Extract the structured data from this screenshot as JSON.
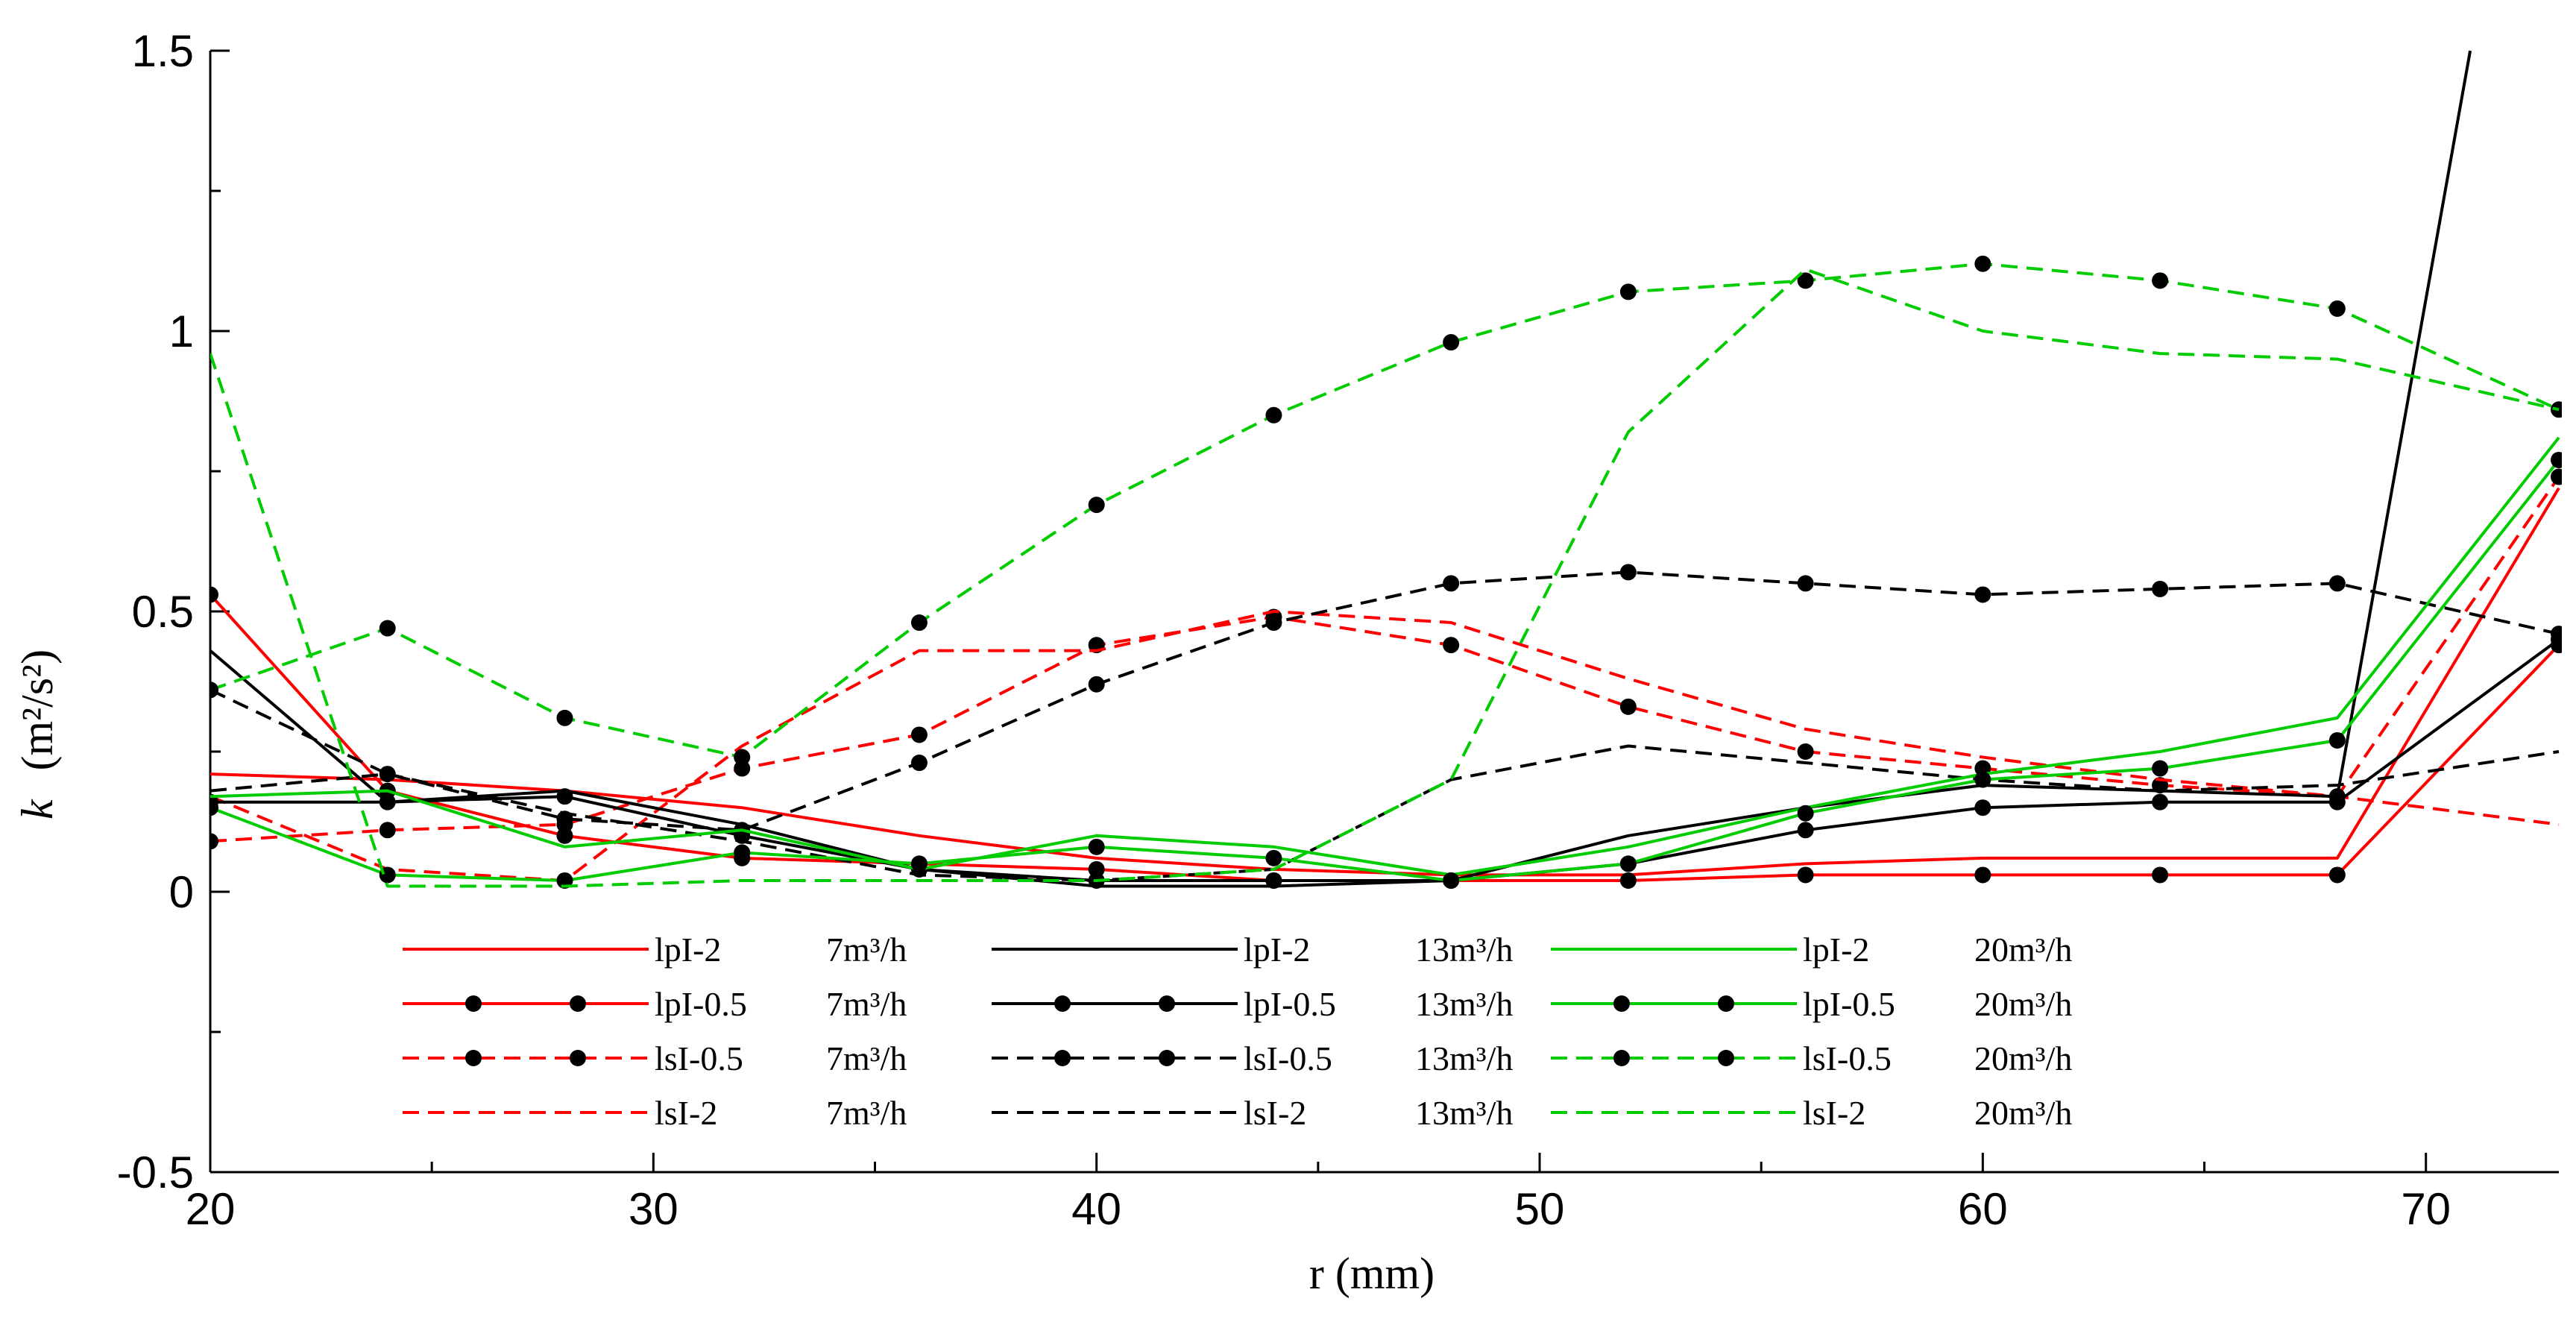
{
  "chart_data": {
    "type": "line",
    "title": "",
    "xlabel": "r  (mm)",
    "ylabel_italic": "k",
    "ylabel_units": "(m²/s²)",
    "xlim": [
      20,
      73
    ],
    "ylim": [
      -0.5,
      1.5
    ],
    "x_ticks": [
      20,
      30,
      40,
      50,
      60,
      70
    ],
    "x_tick_labels": [
      "20",
      "30",
      "40",
      "50",
      "60",
      "70"
    ],
    "x_minor_ticks": [
      25,
      35,
      45,
      55,
      65
    ],
    "y_ticks": [
      -0.5,
      0,
      0.5,
      1,
      1.5
    ],
    "y_tick_labels": [
      "-0.5",
      "0",
      "0.5",
      "1",
      "1.5"
    ],
    "grid": false,
    "legend_placement": "bottom-center, 3 columns x 4 rows",
    "series": [
      {
        "name": "lpI-2",
        "rate": "7m³/h",
        "color": "#ff0000",
        "dash": "solid",
        "markers": false,
        "x": [
          20,
          24,
          28,
          32,
          36,
          40,
          44,
          48,
          52,
          56,
          60,
          64,
          68,
          73
        ],
        "y": [
          0.21,
          0.2,
          0.18,
          0.15,
          0.1,
          0.06,
          0.04,
          0.03,
          0.03,
          0.05,
          0.06,
          0.06,
          0.06,
          0.72
        ]
      },
      {
        "name": "lpI-0.5",
        "rate": "7m³/h",
        "color": "#ff0000",
        "dash": "solid",
        "markers": true,
        "x": [
          20,
          24,
          28,
          32,
          36,
          40,
          44,
          48,
          52,
          56,
          60,
          64,
          68,
          73
        ],
        "y": [
          0.53,
          0.18,
          0.1,
          0.06,
          0.05,
          0.04,
          0.02,
          0.02,
          0.02,
          0.03,
          0.03,
          0.03,
          0.03,
          0.44
        ]
      },
      {
        "name": "lsI-0.5",
        "rate": "7m³/h",
        "color": "#ff0000",
        "dash": "dashed",
        "markers": true,
        "x": [
          20,
          24,
          28,
          32,
          36,
          40,
          44,
          48,
          52,
          56,
          60,
          64,
          68,
          73
        ],
        "y": [
          0.09,
          0.11,
          0.12,
          0.22,
          0.28,
          0.44,
          0.49,
          0.44,
          0.33,
          0.25,
          0.22,
          0.19,
          0.17,
          0.74
        ]
      },
      {
        "name": "lsI-2",
        "rate": "7m³/h",
        "color": "#ff0000",
        "dash": "dashed",
        "markers": false,
        "x": [
          20,
          24,
          28,
          32,
          36,
          40,
          44,
          48,
          52,
          56,
          60,
          64,
          68,
          73
        ],
        "y": [
          0.17,
          0.04,
          0.02,
          0.26,
          0.43,
          0.43,
          0.5,
          0.48,
          0.38,
          0.29,
          0.24,
          0.2,
          0.17,
          0.12
        ]
      },
      {
        "name": "lpI-2",
        "rate": "13m³/h",
        "color": "#000000",
        "dash": "solid",
        "markers": false,
        "x": [
          20,
          24,
          28,
          32,
          36,
          40,
          44,
          48,
          52,
          56,
          60,
          64,
          68,
          71
        ],
        "y": [
          0.43,
          0.16,
          0.18,
          0.12,
          0.04,
          0.01,
          0.01,
          0.02,
          0.1,
          0.15,
          0.19,
          0.18,
          0.17,
          1.5
        ]
      },
      {
        "name": "lpI-0.5",
        "rate": "13m³/h",
        "color": "#000000",
        "dash": "solid",
        "markers": true,
        "x": [
          20,
          24,
          28,
          32,
          36,
          40,
          44,
          48,
          52,
          56,
          60,
          64,
          68,
          73
        ],
        "y": [
          0.16,
          0.16,
          0.17,
          0.1,
          0.04,
          0.02,
          0.02,
          0.02,
          0.05,
          0.11,
          0.15,
          0.16,
          0.16,
          0.45
        ]
      },
      {
        "name": "lsI-0.5",
        "rate": "13m³/h",
        "color": "#000000",
        "dash": "dashed",
        "markers": true,
        "x": [
          20,
          24,
          28,
          32,
          36,
          40,
          44,
          48,
          52,
          56,
          60,
          64,
          68,
          73
        ],
        "y": [
          0.36,
          0.21,
          0.13,
          0.11,
          0.23,
          0.37,
          0.48,
          0.55,
          0.57,
          0.55,
          0.53,
          0.54,
          0.55,
          0.46
        ]
      },
      {
        "name": "lsI-2",
        "rate": "13m³/h",
        "color": "#000000",
        "dash": "dashed",
        "markers": false,
        "x": [
          20,
          24,
          28,
          32,
          36,
          40,
          44,
          48,
          52,
          56,
          60,
          64,
          68,
          73
        ],
        "y": [
          0.18,
          0.21,
          0.14,
          0.09,
          0.03,
          0.02,
          0.04,
          0.2,
          0.26,
          0.23,
          0.2,
          0.18,
          0.19,
          0.25
        ]
      },
      {
        "name": "lpI-2",
        "rate": "20m³/h",
        "color": "#00cc00",
        "dash": "solid",
        "markers": false,
        "x": [
          20,
          24,
          28,
          32,
          36,
          40,
          44,
          48,
          52,
          56,
          60,
          64,
          68,
          73
        ],
        "y": [
          0.17,
          0.18,
          0.08,
          0.11,
          0.04,
          0.1,
          0.08,
          0.03,
          0.08,
          0.15,
          0.21,
          0.25,
          0.31,
          0.81
        ]
      },
      {
        "name": "lpI-0.5",
        "rate": "20m³/h",
        "color": "#00cc00",
        "dash": "solid",
        "markers": true,
        "x": [
          20,
          24,
          28,
          32,
          36,
          40,
          44,
          48,
          52,
          56,
          60,
          64,
          68,
          73
        ],
        "y": [
          0.15,
          0.03,
          0.02,
          0.07,
          0.05,
          0.08,
          0.06,
          0.02,
          0.05,
          0.14,
          0.2,
          0.22,
          0.27,
          0.77
        ]
      },
      {
        "name": "lsI-0.5",
        "rate": "20m³/h",
        "color": "#00cc00",
        "dash": "dashed",
        "markers": true,
        "x": [
          20,
          24,
          28,
          32,
          36,
          40,
          44,
          48,
          52,
          56,
          60,
          64,
          68,
          73
        ],
        "y": [
          0.36,
          0.47,
          0.31,
          0.24,
          0.48,
          0.69,
          0.85,
          0.98,
          1.07,
          1.09,
          1.12,
          1.09,
          1.04,
          0.86
        ]
      },
      {
        "name": "lsI-2",
        "rate": "20m³/h",
        "color": "#00cc00",
        "dash": "dashed",
        "markers": false,
        "x": [
          20,
          24,
          28,
          32,
          36,
          40,
          44,
          48,
          52,
          56,
          60,
          64,
          68,
          73
        ],
        "y": [
          0.96,
          0.01,
          0.01,
          0.02,
          0.02,
          0.02,
          0.04,
          0.2,
          0.82,
          1.11,
          1.0,
          0.96,
          0.95,
          0.86
        ]
      }
    ]
  }
}
